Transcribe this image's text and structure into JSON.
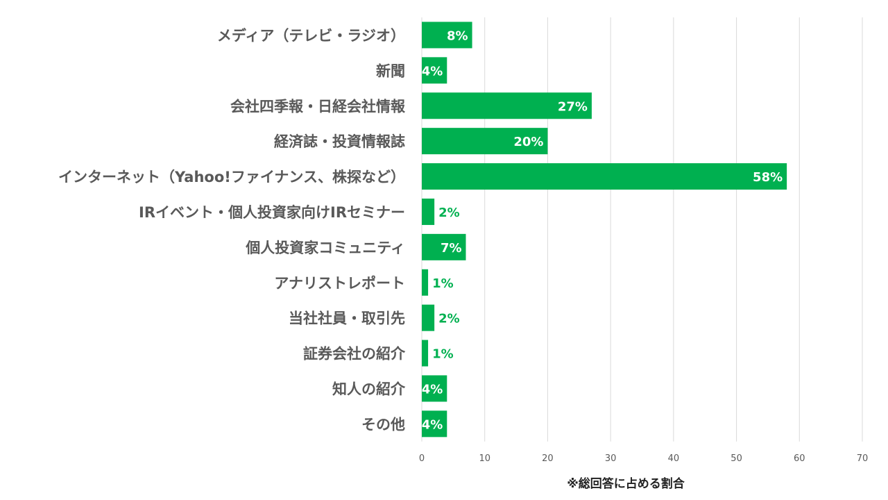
{
  "chart_data": {
    "type": "bar",
    "orientation": "horizontal",
    "categories": [
      "メディア（テレビ・ラジオ）",
      "新聞",
      "会社四季報・日経会社情報",
      "経済誌・投資情報誌",
      "インターネット（Yahoo!ファイナンス、株探など）",
      "IRイベント・個人投資家向けIRセミナー",
      "個人投資家コミュニティ",
      "アナリストレポート",
      "当社社員・取引先",
      "証券会社の紹介",
      "知人の紹介",
      "その他"
    ],
    "values": [
      8,
      4,
      27,
      20,
      58,
      2,
      7,
      1,
      2,
      1,
      4,
      4
    ],
    "data_labels": [
      "8%",
      "4%",
      "27%",
      "20%",
      "58%",
      "2%",
      "7%",
      "1%",
      "2%",
      "1%",
      "4%",
      "4%"
    ],
    "xlim": [
      0,
      70
    ],
    "xticks": [
      "0",
      "10",
      "20",
      "30",
      "40",
      "50",
      "60",
      "70"
    ],
    "grid": true,
    "legend": "none",
    "note": "※総回答に占める割合",
    "colors": {
      "bar": "#00B050",
      "label_inside": "#FFFFFF",
      "label_outside": "#00B050",
      "category_text": "#595959",
      "grid": "#D9D9D9"
    }
  }
}
